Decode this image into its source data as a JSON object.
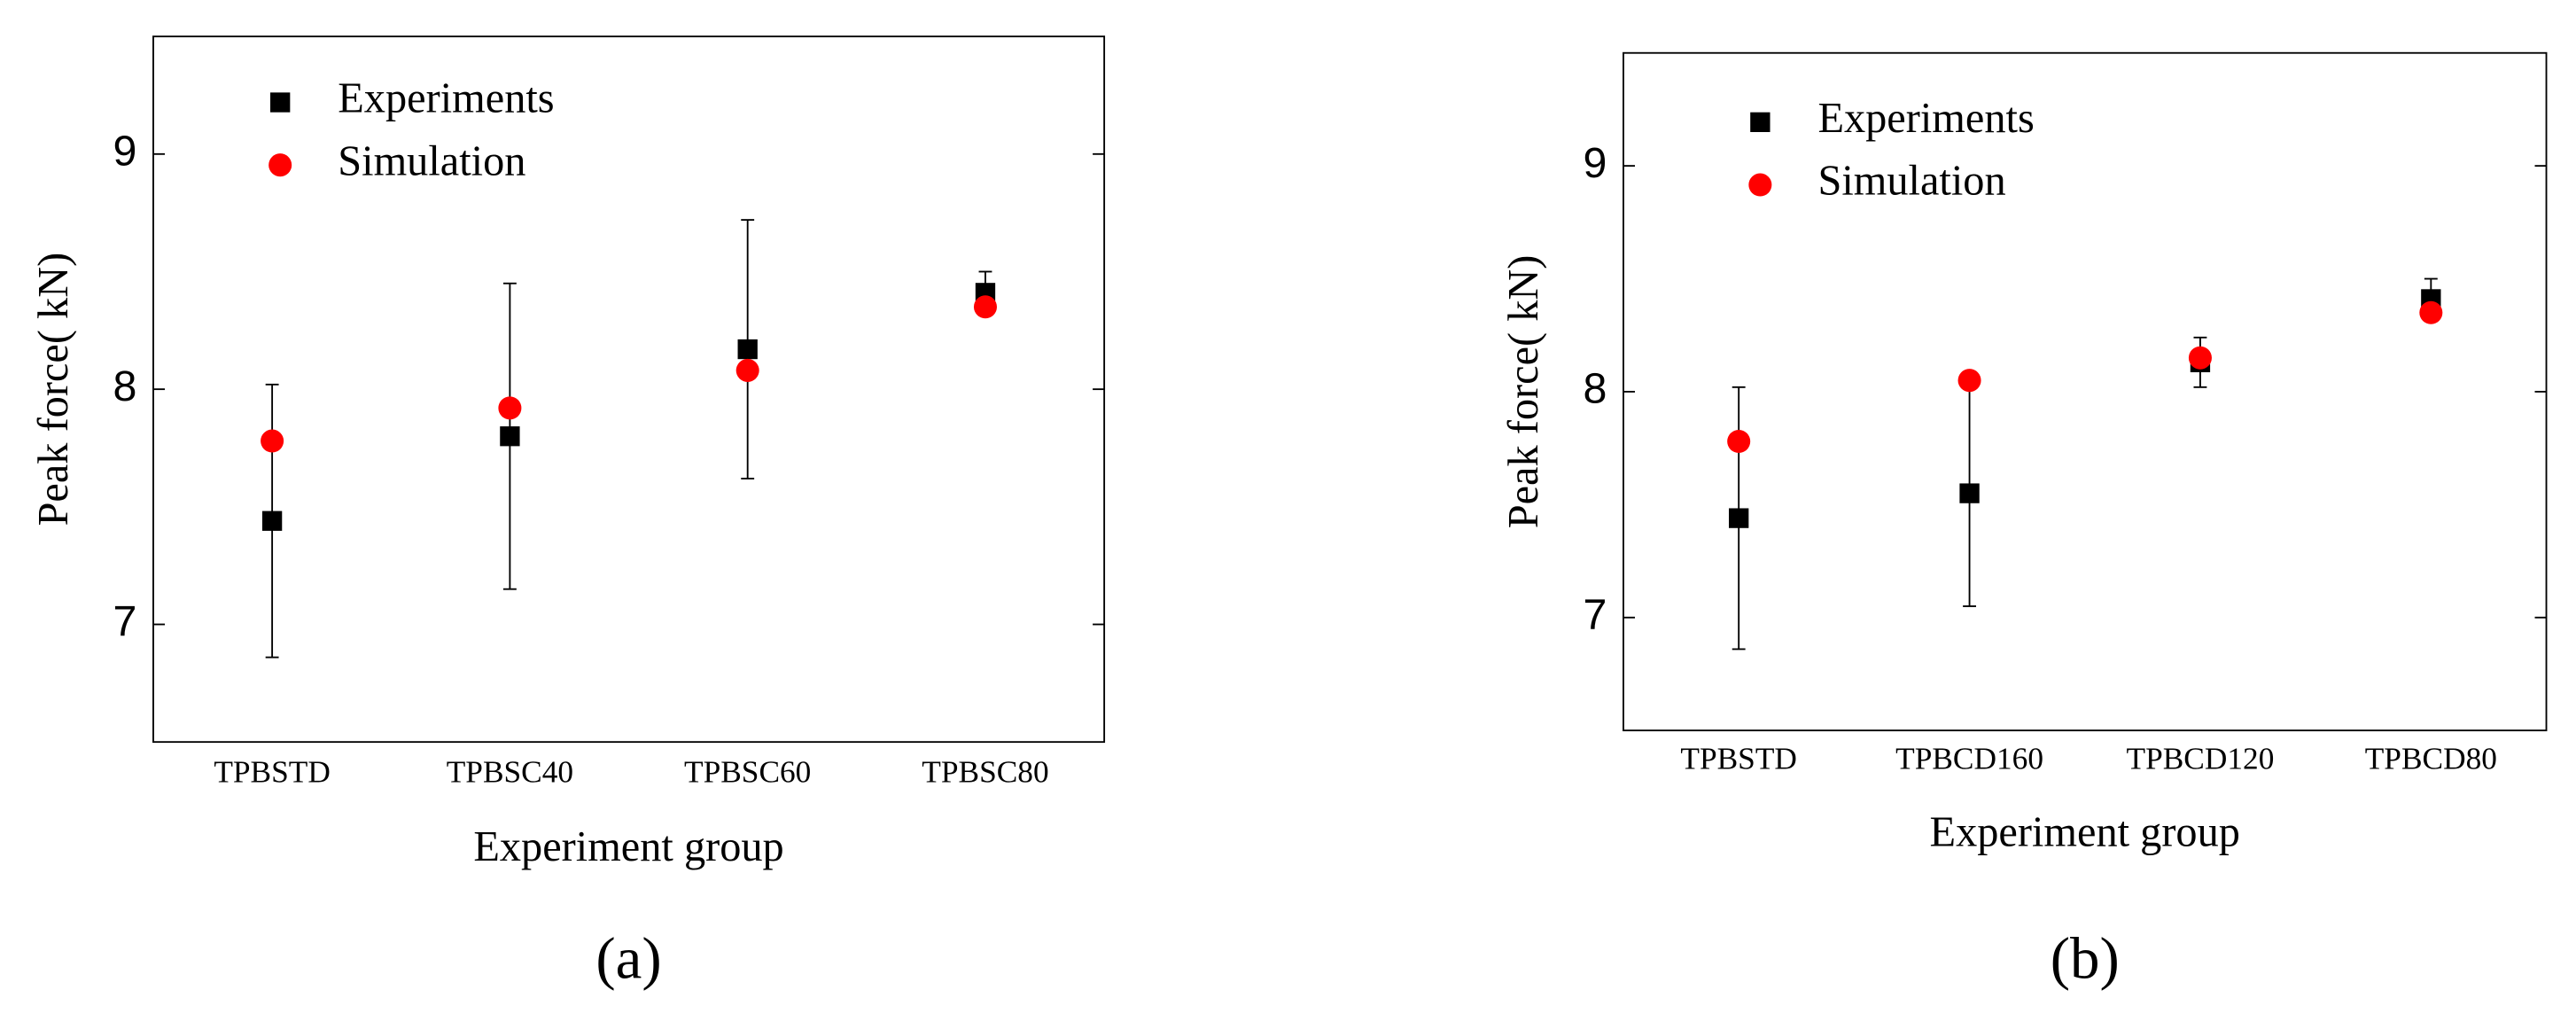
{
  "chart_data": [
    {
      "type": "errorbar",
      "panel_label": "(a)",
      "xlabel": "Experiment group",
      "ylabel": "Peak force( kN)",
      "categories": [
        "TPBSTD",
        "TPBSC40",
        "TPBSC60",
        "TPBSC80"
      ],
      "series": [
        {
          "name": "Experiments",
          "color": "#000000",
          "marker": "square",
          "values": [
            7.44,
            7.8,
            8.17,
            8.41
          ],
          "errors": [
            0.58,
            0.65,
            0.55,
            0.09
          ]
        },
        {
          "name": "Simulation",
          "color": "#ff0000",
          "marker": "circle",
          "values": [
            7.78,
            7.92,
            8.08,
            8.35
          ]
        }
      ],
      "ylim": [
        6.5,
        9.5
      ],
      "yticks": [
        7,
        8,
        9
      ],
      "legend": "upper left"
    },
    {
      "type": "errorbar",
      "panel_label": "(b)",
      "xlabel": "Experiment group",
      "ylabel": "Peak force( kN)",
      "categories": [
        "TPBSTD",
        "TPBCD160",
        "TPBCD120",
        "TPBCD80"
      ],
      "series": [
        {
          "name": "Experiments",
          "color": "#000000",
          "marker": "square",
          "values": [
            7.44,
            7.55,
            8.13,
            8.41
          ],
          "errors": [
            0.58,
            0.5,
            0.11,
            0.09
          ]
        },
        {
          "name": "Simulation",
          "color": "#ff0000",
          "marker": "circle",
          "values": [
            7.78,
            8.05,
            8.15,
            8.35
          ]
        }
      ],
      "ylim": [
        6.5,
        9.5
      ],
      "yticks": [
        7,
        8,
        9
      ],
      "legend": "upper left"
    }
  ]
}
